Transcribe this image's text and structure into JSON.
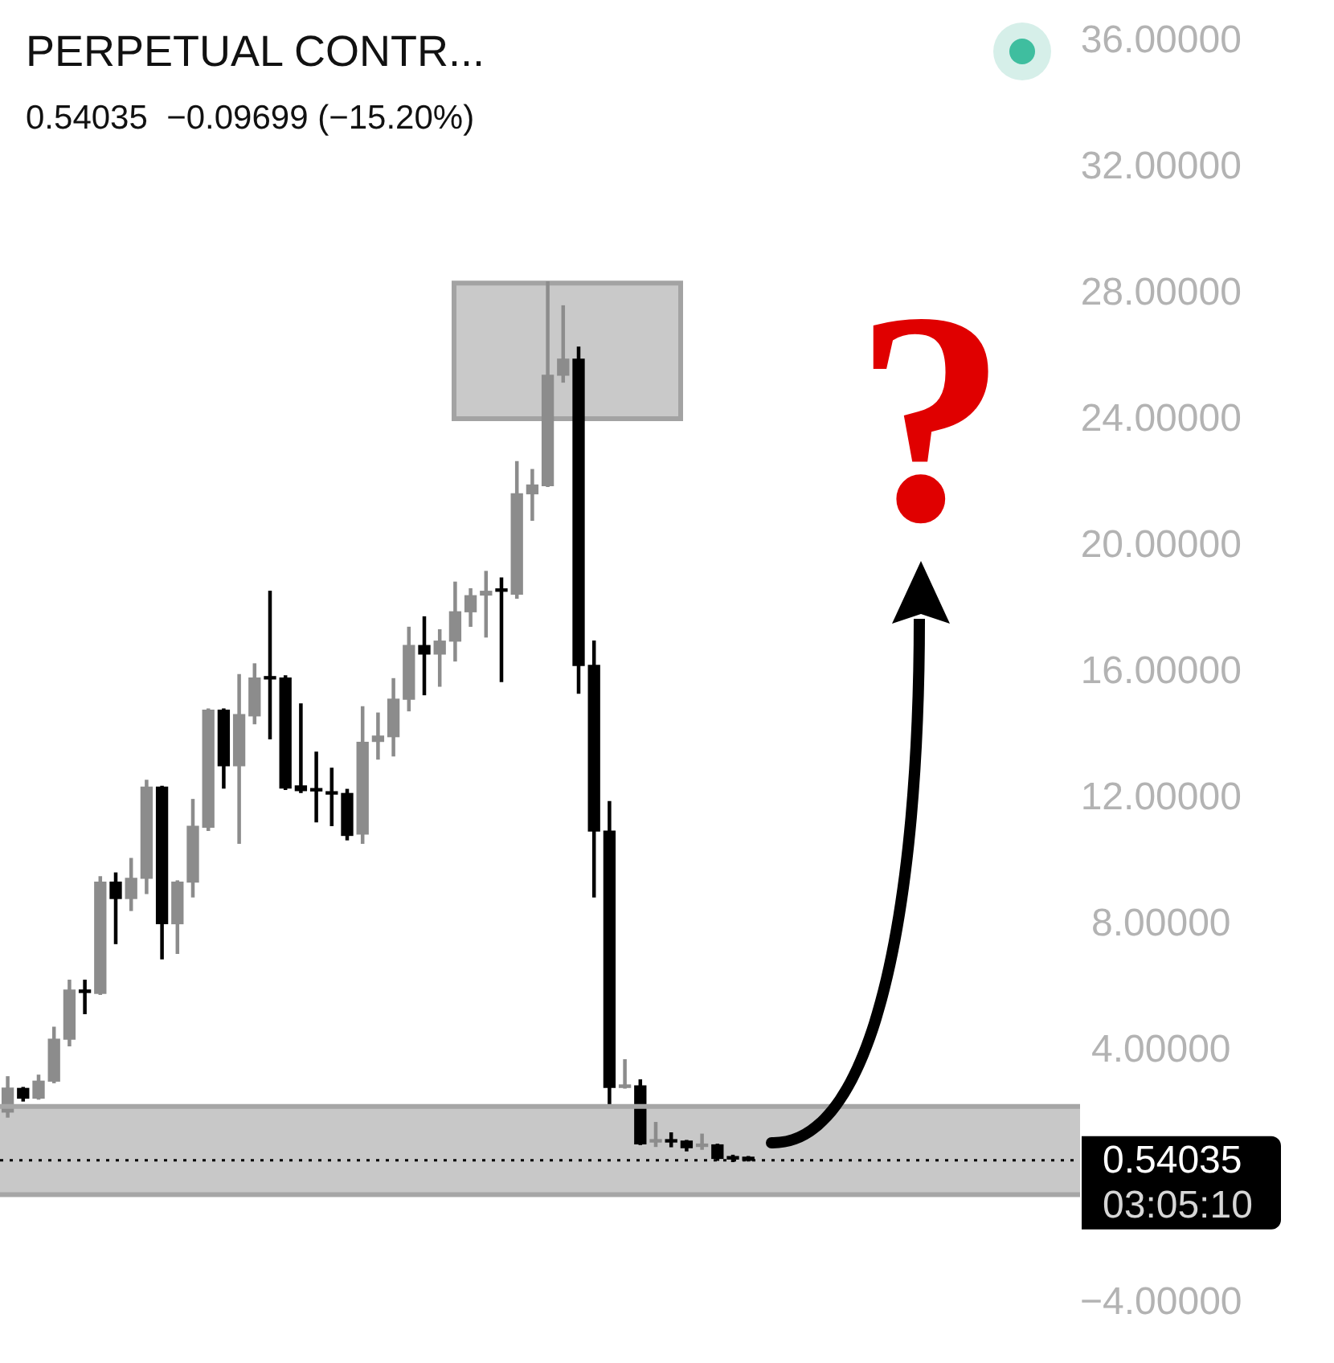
{
  "chart_data": {
    "type": "candlestick",
    "title": "PERPETUAL CONTR...",
    "subtitle": "0.54035  −0.09699 (−15.20%)",
    "categories": [
      null,
      null,
      null,
      null,
      null,
      null,
      null,
      null,
      null,
      null,
      null,
      null,
      null,
      null,
      null,
      null,
      null,
      null,
      null,
      null,
      null,
      null,
      null,
      null,
      null,
      null,
      null,
      null,
      null,
      null,
      null,
      null,
      null,
      null,
      null,
      null,
      null,
      null,
      null,
      null,
      null,
      null,
      null,
      null,
      null,
      null,
      null,
      null,
      null,
      null,
      null,
      null,
      null,
      null,
      null,
      null,
      null,
      null,
      null,
      null,
      null,
      null,
      null,
      null,
      null,
      null,
      null,
      null,
      null,
      null
    ],
    "ohlc": [
      [
        2.07,
        3.19,
        1.91,
        2.83
      ],
      [
        2.82,
        2.85,
        2.42,
        2.51
      ],
      [
        2.51,
        3.24,
        2.48,
        3.05
      ],
      [
        3.05,
        4.76,
        3.0,
        4.38
      ],
      [
        4.38,
        6.25,
        4.17,
        5.94
      ],
      [
        5.94,
        6.25,
        5.19,
        5.86
      ],
      [
        5.83,
        9.53,
        5.8,
        9.36
      ],
      [
        9.36,
        9.65,
        7.41,
        8.84
      ],
      [
        8.84,
        10.11,
        8.46,
        9.48
      ],
      [
        9.48,
        12.59,
        9.0,
        12.37
      ],
      [
        12.37,
        12.4,
        6.93,
        8.04
      ],
      [
        8.04,
        9.4,
        7.1,
        9.36
      ],
      [
        9.36,
        11.98,
        8.89,
        11.13
      ],
      [
        11.1,
        14.85,
        11.0,
        14.81
      ],
      [
        14.81,
        14.85,
        12.34,
        13.05
      ],
      [
        13.05,
        15.94,
        10.59,
        14.67
      ],
      [
        14.63,
        16.28,
        14.38,
        15.83
      ],
      [
        15.86,
        18.58,
        13.9,
        15.8
      ],
      [
        15.83,
        15.9,
        12.3,
        12.34
      ],
      [
        12.41,
        15.01,
        12.2,
        12.26
      ],
      [
        12.31,
        13.48,
        11.27,
        12.25
      ],
      [
        12.22,
        12.97,
        11.15,
        12.15
      ],
      [
        12.17,
        12.3,
        10.7,
        10.84
      ],
      [
        10.88,
        14.92,
        10.59,
        13.79
      ],
      [
        13.82,
        14.72,
        13.26,
        13.99
      ],
      [
        13.97,
        15.81,
        13.36,
        15.16
      ],
      [
        15.16,
        17.44,
        14.79,
        16.86
      ],
      [
        16.86,
        17.77,
        15.3,
        16.59
      ],
      [
        16.59,
        17.36,
        15.57,
        17.0
      ],
      [
        17.0,
        18.87,
        16.37,
        17.93
      ],
      [
        17.93,
        18.66,
        17.47,
        18.44
      ],
      [
        18.46,
        19.21,
        17.13,
        18.58
      ],
      [
        18.63,
        19.0,
        15.72,
        18.58
      ],
      [
        18.49,
        22.69,
        18.36,
        21.67
      ],
      [
        21.67,
        22.44,
        20.83,
        21.95
      ],
      [
        21.93,
        28.39,
        21.9,
        25.43
      ],
      [
        25.43,
        27.63,
        25.21,
        25.94
      ],
      [
        25.94,
        26.32,
        15.35,
        16.23
      ],
      [
        16.23,
        17.0,
        8.89,
        10.98
      ],
      [
        10.98,
        11.91,
        2.26,
        2.85
      ],
      [
        2.85,
        3.73,
        2.83,
        2.93
      ],
      [
        2.9,
        3.09,
        1.04,
        1.06
      ],
      [
        1.12,
        1.74,
        0.98,
        1.17
      ],
      [
        1.18,
        1.41,
        0.97,
        1.12
      ],
      [
        1.15,
        1.17,
        0.84,
        0.94
      ],
      [
        0.98,
        1.37,
        0.89,
        1.05
      ],
      [
        1.03,
        1.05,
        0.54,
        0.6
      ],
      [
        0.66,
        0.7,
        0.5,
        0.58
      ],
      [
        0.64,
        0.66,
        0.52,
        0.54
      ],
      null,
      null,
      null,
      null,
      null,
      null,
      null,
      null,
      null,
      null,
      null,
      null,
      null,
      null,
      null,
      null,
      null,
      null,
      null,
      null,
      null
    ],
    "colors": [
      "#8c8c8c",
      "#000000",
      "#8c8c8c",
      "#8c8c8c",
      "#8c8c8c",
      "#000000",
      "#8c8c8c",
      "#000000",
      "#8c8c8c",
      "#8c8c8c",
      "#000000",
      "#8c8c8c",
      "#8c8c8c",
      "#8c8c8c",
      "#000000",
      "#8c8c8c",
      "#8c8c8c",
      "#000000",
      "#000000",
      "#000000",
      "#000000",
      "#000000",
      "#000000",
      "#8c8c8c",
      "#8c8c8c",
      "#8c8c8c",
      "#8c8c8c",
      "#000000",
      "#8c8c8c",
      "#8c8c8c",
      "#8c8c8c",
      "#8c8c8c",
      "#000000",
      "#8c8c8c",
      "#8c8c8c",
      "#8c8c8c",
      "#8c8c8c",
      "#000000",
      "#000000",
      "#000000",
      "#8c8c8c",
      "#000000",
      "#8c8c8c",
      "#000000",
      "#000000",
      "#8c8c8c",
      "#000000",
      "#000000",
      "#000000",
      null,
      null,
      null,
      null,
      null,
      null,
      null,
      null,
      null,
      null,
      null,
      null,
      null,
      null,
      null,
      null,
      null,
      null,
      null,
      null,
      null
    ],
    "ylim": [
      -4,
      36
    ],
    "yticks": [
      {
        "value": 36,
        "label": "36.00000"
      },
      {
        "value": 32,
        "label": "32.00000"
      },
      {
        "value": 28,
        "label": "28.00000"
      },
      {
        "value": 24,
        "label": "24.00000"
      },
      {
        "value": 20,
        "label": "20.00000"
      },
      {
        "value": 16,
        "label": "16.00000"
      },
      {
        "value": 12,
        "label": "12.00000"
      },
      {
        "value": 8,
        "label": "8.00000"
      },
      {
        "value": 4,
        "label": "4.00000"
      },
      {
        "value": -4,
        "label": "−4.00000"
      }
    ],
    "tick_labels": "y",
    "bands": [
      {
        "axis": "y",
        "from": -0.55,
        "to": 2.25,
        "color": "#c8c8c8"
      },
      {
        "axis": "y",
        "from": 24.05,
        "to": 28.35,
        "color": "#c9c9c9"
      }
    ],
    "ref_lines": [
      {
        "axis": "y",
        "value": 0.54035,
        "label": "0.54035",
        "color": "#000000",
        "line_style": "dotted"
      },
      {
        "axis": "y",
        "value": 2.25,
        "color": "#a6a6a6",
        "line_style": "solid"
      },
      {
        "axis": "y",
        "value": -0.55,
        "color": "#a6a6a6",
        "line_style": "solid"
      }
    ],
    "annotations": [
      "?",
      "03:05:10"
    ]
  }
}
